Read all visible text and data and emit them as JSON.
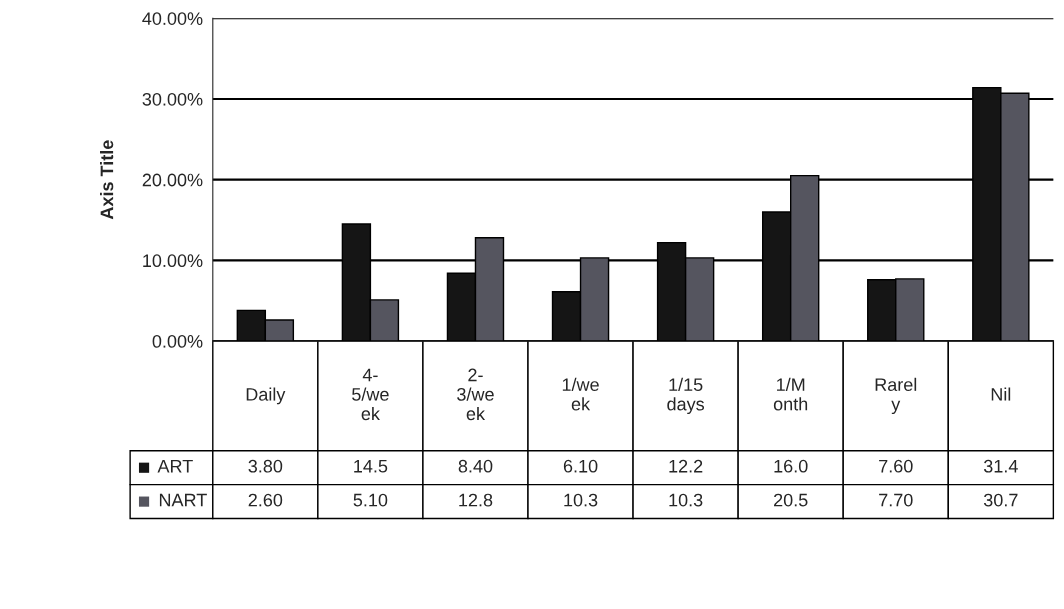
{
  "chart_data": {
    "type": "bar",
    "ylabel": "Axis Title",
    "categories": [
      "Daily",
      "4-\n5/we\nek",
      "2-\n3/we\nek",
      "1/we\nek",
      "1/15\ndays",
      "1/M\nonth",
      "Rarel\ny",
      "Nil"
    ],
    "series": [
      {
        "name": "ART",
        "color": "#151515",
        "values": [
          3.8,
          14.5,
          8.4,
          6.1,
          12.2,
          16.0,
          7.6,
          31.4
        ],
        "value_labels": [
          "3.80",
          "14.5",
          "8.40",
          "6.10",
          "12.2",
          "16.0",
          "7.60",
          "31.4"
        ]
      },
      {
        "name": "NART",
        "color": "#55555f",
        "values": [
          2.6,
          5.1,
          12.8,
          10.3,
          10.3,
          20.5,
          7.7,
          30.7
        ],
        "value_labels": [
          "2.60",
          "5.10",
          "12.8",
          "10.3",
          "10.3",
          "20.5",
          "7.70",
          "30.7"
        ]
      }
    ],
    "ylim": [
      0,
      40
    ],
    "yticks": [
      {
        "value": 0,
        "label": "0.00%"
      },
      {
        "value": 10,
        "label": "10.00%"
      },
      {
        "value": 20,
        "label": "20.00%"
      },
      {
        "value": 30,
        "label": "30.00%"
      },
      {
        "value": 40,
        "label": "40.00%"
      }
    ],
    "grid": "y",
    "legend": "bottom"
  }
}
